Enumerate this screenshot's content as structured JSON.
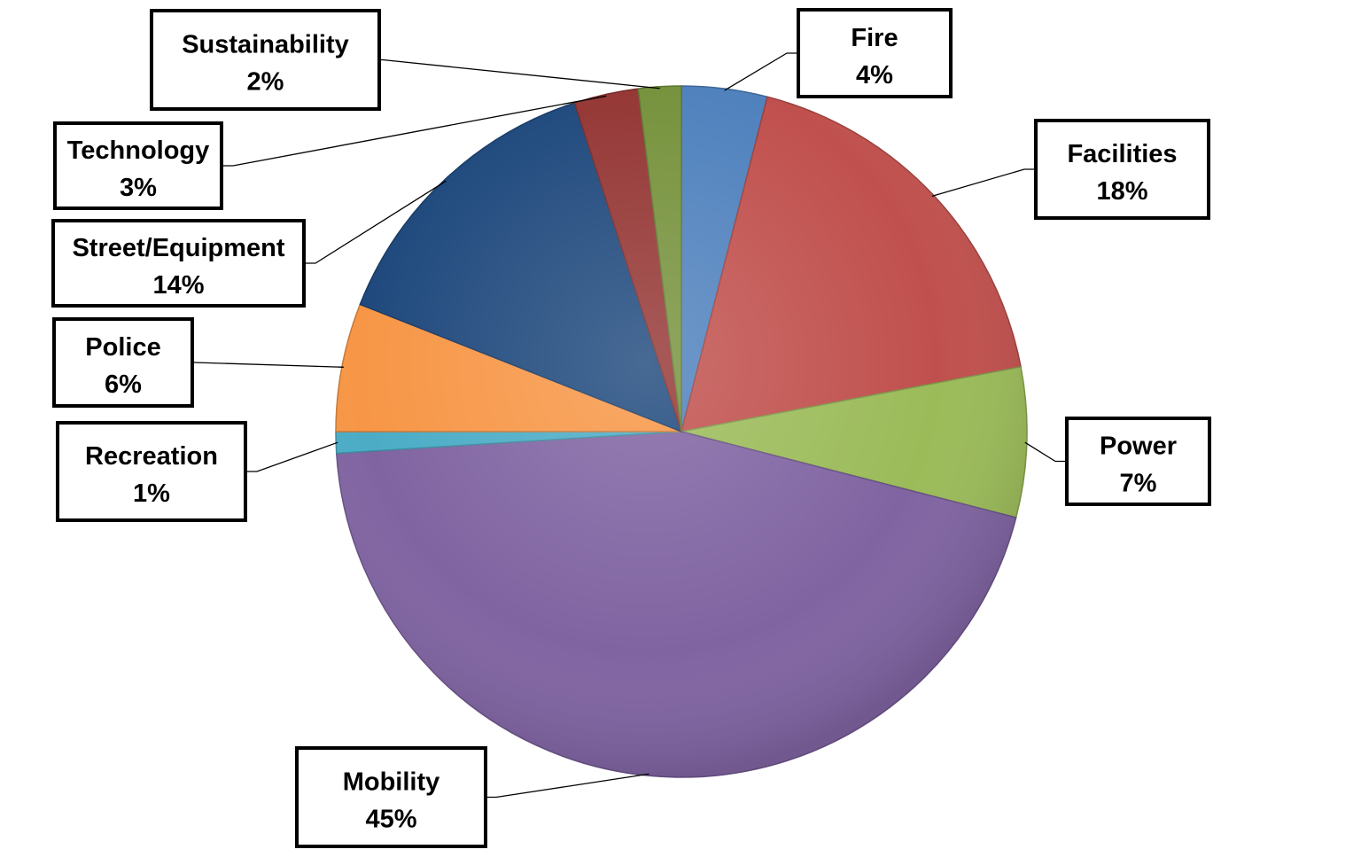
{
  "chart_data": {
    "type": "pie",
    "title": "",
    "slices": [
      {
        "name": "Fire",
        "label": "4%",
        "value": 4,
        "color": "#4F81BD"
      },
      {
        "name": "Facilities",
        "label": "18%",
        "value": 18,
        "color": "#C0504D"
      },
      {
        "name": "Power",
        "label": "7%",
        "value": 7,
        "color": "#9BBB59"
      },
      {
        "name": "Mobility",
        "label": "45%",
        "value": 45,
        "color": "#8064A2"
      },
      {
        "name": "Recreation",
        "label": "1%",
        "value": 1,
        "color": "#4BACC6"
      },
      {
        "name": "Police",
        "label": "6%",
        "value": 6,
        "color": "#F79646"
      },
      {
        "name": "Street/Equipment",
        "label": "14%",
        "value": 14,
        "color": "#1F497D"
      },
      {
        "name": "Technology",
        "label": "3%",
        "value": 3,
        "color": "#943634"
      },
      {
        "name": "Sustainability",
        "label": "2%",
        "value": 2,
        "color": "#76923C"
      }
    ],
    "legend": "none",
    "data_labels": "outside-with-leader-lines"
  }
}
